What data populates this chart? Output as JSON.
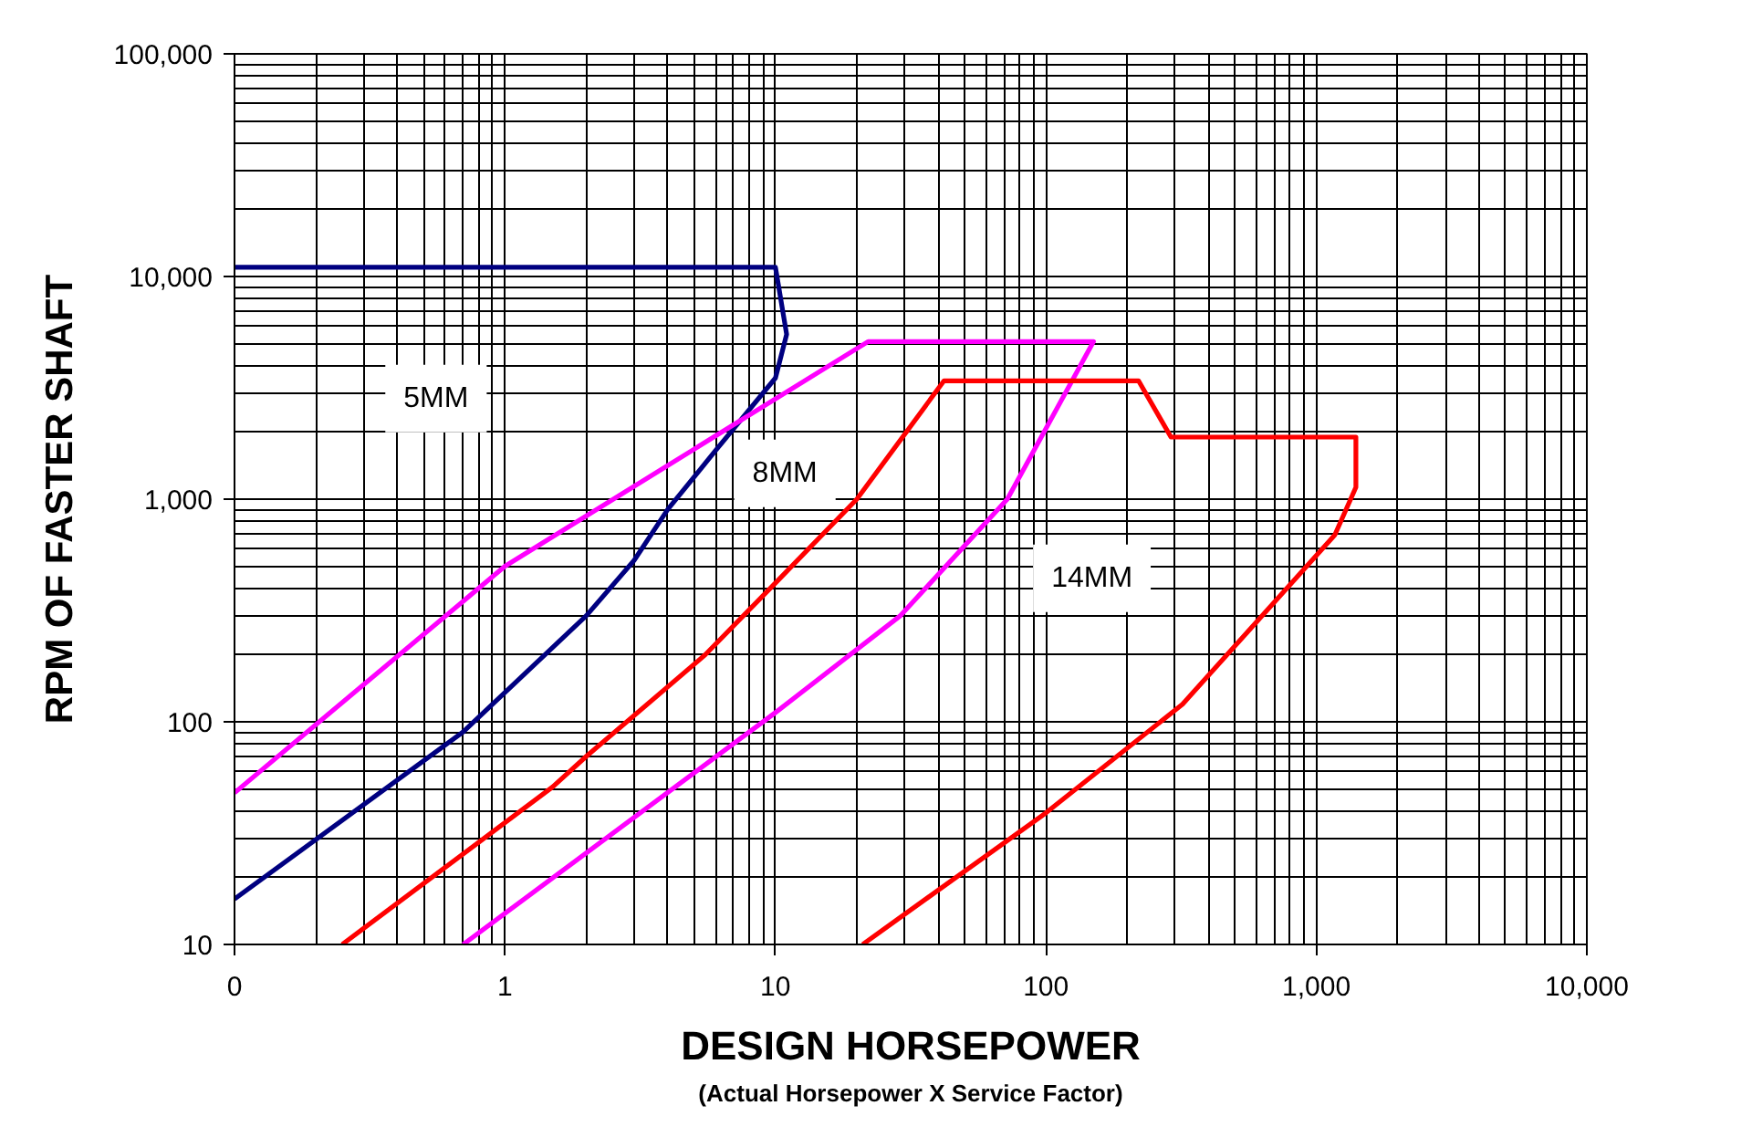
{
  "chart_data": {
    "type": "line",
    "xlabel": "DESIGN HORSEPOWER",
    "ylabel": "RPM OF FASTER SHAFT",
    "log": "xy",
    "grid": true,
    "line_style": "solid",
    "marker": "none",
    "xlim": [
      0.1,
      10000
    ],
    "ylim": [
      10,
      100000
    ],
    "xticks": [
      {
        "value": 0.1,
        "label": "0"
      },
      1,
      10,
      100,
      {
        "value": 1000,
        "label": "1,000"
      },
      {
        "value": 10000,
        "label": "10,000"
      }
    ],
    "yticks": [
      10,
      100,
      {
        "value": 1000,
        "label": "1,000"
      },
      {
        "value": 10000,
        "label": "10,000"
      },
      {
        "value": 100000,
        "label": "100,000"
      }
    ],
    "series": [
      {
        "name": "5MM",
        "color": "#000080",
        "x": [
          0.1,
          0.7,
          2,
          3,
          4,
          6,
          10,
          11,
          10,
          0.1
        ],
        "values": [
          16,
          90,
          300,
          530,
          900,
          1650,
          3500,
          5500,
          11000,
          11000
        ]
      },
      {
        "name": "8MM",
        "color": "#ff00ff",
        "x": [
          0.1,
          1,
          22,
          150,
          72,
          29,
          10,
          0.7
        ],
        "values": [
          48,
          500,
          5100,
          5100,
          1000,
          300,
          110,
          10
        ]
      },
      {
        "name": "14MM",
        "color": "#ff0000",
        "x": [
          0.25,
          1.5,
          2,
          5.5,
          10,
          20,
          42,
          220,
          290,
          1400,
          1400,
          1170,
          320,
          100,
          21
        ],
        "values": [
          10,
          51,
          70,
          200,
          420,
          1000,
          3400,
          3400,
          1900,
          1900,
          1130,
          690,
          120,
          39,
          10
        ]
      }
    ],
    "annotations": [
      "(Actual Horsepower X Service Factor)"
    ]
  }
}
